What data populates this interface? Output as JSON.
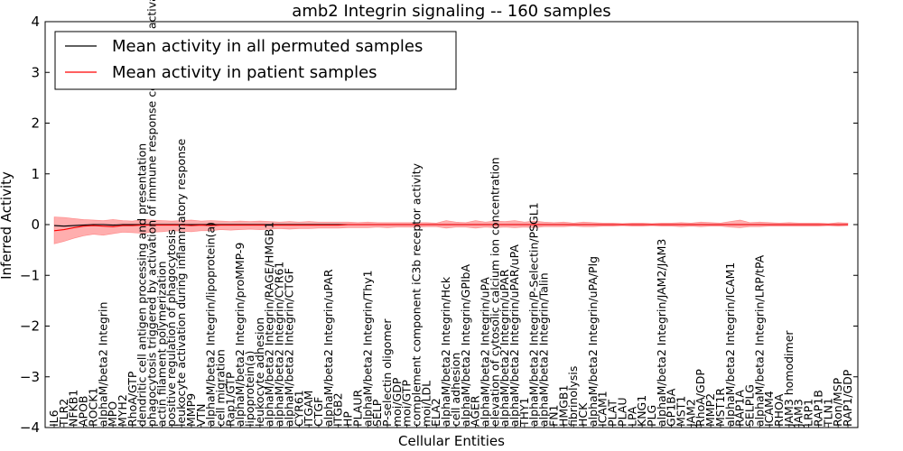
{
  "chart_data": {
    "type": "line",
    "title": "amb2 Integrin signaling -- 160 samples",
    "xlabel": "Cellular Entities",
    "ylabel": "Inferred Activity",
    "ylim": [
      -4,
      4
    ],
    "yticks": [
      -4,
      -3,
      -2,
      -1,
      0,
      1,
      2,
      3,
      4
    ],
    "ytick_labels": [
      "−4",
      "−3",
      "−2",
      "−1",
      "0",
      "1",
      "2",
      "3",
      "4"
    ],
    "legend_position": "top-left",
    "categories": [
      "IL6",
      "TLR2",
      "NFKB1",
      "APOB",
      "ROCK1",
      "alphaM/beta2 Integrin",
      "MPO",
      "MYH2",
      "RhoA/GTP",
      "dendritic cell antigen processing and presentation",
      "phagocytosis triggered by activation of immune response cell surface activating receptor",
      "actin filament polymerization",
      "positive regulation of phagocytosis",
      "leukocyte activation during inflammatory response",
      "MMP9",
      "VTN",
      "alphaM/beta2 Integrin/lipoprotein(a)",
      "cell migration",
      "Rap1/GTP",
      "alphaM/beta2 Integrin/proMMP-9",
      "lipoprotein(a)",
      "leukocyte adhesion",
      "alphaM/beta2 Integrin/RAGE/HMGB1",
      "alphaM/beta2 Integrin/CYR61",
      "alphaM/beta2 Integrin/CTGF",
      "CYR61",
      "ITGAM",
      "CTGF",
      "alphaM/beta2 Integrin/uPAR",
      "ITGB2",
      "HP",
      "PLAUR",
      "alphaM/beta2 Integrin/Thy1",
      "SELP",
      "P-selectin oligomer",
      "moi/GDP",
      "moi/GTP",
      "complement component iC3b receptor activity",
      "moi/LDL",
      "ELA2",
      "alphaM/beta2 Integrin/Hck",
      "cell adhesion",
      "alphaM/beta2 Integrin/GPIbA",
      "AGER",
      "alphaM/beta2 Integrin/uPA",
      "elevation of cytosolic calcium ion concentration",
      "alphaM/beta2 Integrin/uPAR",
      "alphaM/beta2 Integrin/uPAR/uPA",
      "THY1",
      "alphaM/beta2 Integrin/P-Selectin/PSGL1",
      "alphaM/beta2 Integrin/Talin",
      "FN1",
      "HMGB1",
      "fibrinolysis",
      "HCK",
      "alphaM/beta2 Integrin/uPA/Plg",
      "ICAM1",
      "PLAT",
      "PLAU",
      "LPA",
      "KNG1",
      "PLG",
      "alphaM/beta2 Integrin/JAM2/JAM3",
      "GP1BA",
      "MST1",
      "JAM2",
      "RhoA/GDP",
      "MMP2",
      "MST1R",
      "alphaM/beta2 Integrin/ICAM1",
      "RAP1A",
      "SELPLG",
      "alphaM/beta2 Integrin/LRP/tPA",
      "ICAM4",
      "RHOA",
      "JAM3 homodimer",
      "JAM3",
      "LRP1",
      "RAP1B",
      "TLN1",
      "Ron/MSP",
      "RAP1/GDP"
    ],
    "series": [
      {
        "name": "Mean activity in all permuted samples",
        "color": "#000000",
        "values": [
          -0.02,
          -0.03,
          -0.02,
          -0.01,
          0.0,
          0.0,
          -0.01,
          0.0,
          0.0,
          0.0,
          0.0,
          0.0,
          0.0,
          0.0,
          0.0,
          0.0,
          0.0,
          0.0,
          0.0,
          0.0,
          0.0,
          0.0,
          0.0,
          0.0,
          0.0,
          0.0,
          0.0,
          0.0,
          0.0,
          0.0,
          0.0,
          0.0,
          0.0,
          0.0,
          0.0,
          0.0,
          0.0,
          0.0,
          0.0,
          0.0,
          0.0,
          0.0,
          0.0,
          0.0,
          0.0,
          0.0,
          0.0,
          0.0,
          0.0,
          0.0,
          0.0,
          0.0,
          0.0,
          0.0,
          0.0,
          0.0,
          0.0,
          0.0,
          0.0,
          0.0,
          0.0,
          0.0,
          0.0,
          0.0,
          0.0,
          0.0,
          0.0,
          0.0,
          0.0,
          0.0,
          0.0,
          0.0,
          0.0,
          0.0,
          0.0,
          0.0,
          0.0,
          0.0,
          0.0,
          0.0,
          0.0,
          0.0
        ],
        "band": 0.02
      },
      {
        "name": "Mean activity in patient samples",
        "color": "#ff0000",
        "values": [
          -0.12,
          -0.1,
          -0.06,
          -0.03,
          -0.02,
          -0.03,
          -0.04,
          -0.02,
          -0.02,
          -0.01,
          -0.01,
          -0.01,
          -0.01,
          -0.01,
          -0.02,
          -0.01,
          -0.02,
          -0.01,
          -0.01,
          -0.01,
          -0.01,
          -0.01,
          -0.01,
          -0.01,
          -0.01,
          -0.01,
          -0.01,
          -0.01,
          -0.01,
          -0.01,
          0.0,
          0.0,
          0.0,
          0.0,
          0.0,
          0.0,
          0.0,
          0.0,
          0.0,
          0.0,
          0.0,
          0.0,
          0.0,
          0.0,
          0.0,
          0.0,
          0.0,
          0.0,
          0.0,
          0.0,
          0.0,
          0.0,
          0.0,
          0.0,
          0.0,
          0.0,
          0.0,
          0.0,
          0.0,
          0.0,
          0.0,
          0.0,
          0.0,
          0.0,
          0.0,
          0.0,
          0.0,
          0.0,
          0.0,
          0.0,
          0.0,
          0.0,
          0.0,
          0.0,
          0.0,
          0.0,
          0.0,
          0.0,
          0.0,
          0.0,
          0.0,
          0.0
        ],
        "band_upper": [
          0.15,
          0.14,
          0.12,
          0.1,
          0.09,
          0.08,
          0.1,
          0.08,
          0.07,
          0.1,
          0.09,
          0.08,
          0.07,
          0.08,
          0.09,
          0.07,
          0.08,
          0.07,
          0.06,
          0.07,
          0.06,
          0.07,
          0.06,
          0.05,
          0.06,
          0.05,
          0.06,
          0.05,
          0.05,
          0.05,
          0.05,
          0.04,
          0.05,
          0.04,
          0.04,
          0.04,
          0.04,
          0.04,
          0.04,
          0.03,
          0.08,
          0.05,
          0.04,
          0.08,
          0.05,
          0.07,
          0.06,
          0.08,
          0.05,
          0.07,
          0.05,
          0.04,
          0.05,
          0.03,
          0.05,
          0.04,
          0.03,
          0.03,
          0.02,
          0.03,
          0.03,
          0.02,
          0.03,
          0.03,
          0.04,
          0.03,
          0.05,
          0.04,
          0.03,
          0.06,
          0.09,
          0.04,
          0.05,
          0.04,
          0.03,
          0.04,
          0.03,
          0.03,
          0.03,
          0.02,
          0.04,
          0.03
        ],
        "band_lower": [
          -0.38,
          -0.33,
          -0.27,
          -0.22,
          -0.19,
          -0.21,
          -0.18,
          -0.15,
          -0.16,
          -0.17,
          -0.15,
          -0.14,
          -0.12,
          -0.13,
          -0.14,
          -0.12,
          -0.12,
          -0.1,
          -0.11,
          -0.1,
          -0.09,
          -0.1,
          -0.09,
          -0.08,
          -0.09,
          -0.08,
          -0.08,
          -0.07,
          -0.07,
          -0.07,
          -0.06,
          -0.06,
          -0.06,
          -0.05,
          -0.06,
          -0.05,
          -0.05,
          -0.05,
          -0.04,
          -0.04,
          -0.07,
          -0.05,
          -0.05,
          -0.07,
          -0.05,
          -0.06,
          -0.05,
          -0.06,
          -0.05,
          -0.06,
          -0.04,
          -0.04,
          -0.04,
          -0.03,
          -0.04,
          -0.04,
          -0.03,
          -0.03,
          -0.02,
          -0.03,
          -0.03,
          -0.02,
          -0.03,
          -0.03,
          -0.04,
          -0.03,
          -0.04,
          -0.03,
          -0.03,
          -0.05,
          -0.06,
          -0.04,
          -0.04,
          -0.03,
          -0.03,
          -0.03,
          -0.03,
          -0.03,
          -0.03,
          -0.02,
          -0.03,
          -0.02
        ]
      }
    ],
    "colors": {
      "band_red": "#ff6b6b",
      "band_gray": "#b0b8d8"
    }
  }
}
